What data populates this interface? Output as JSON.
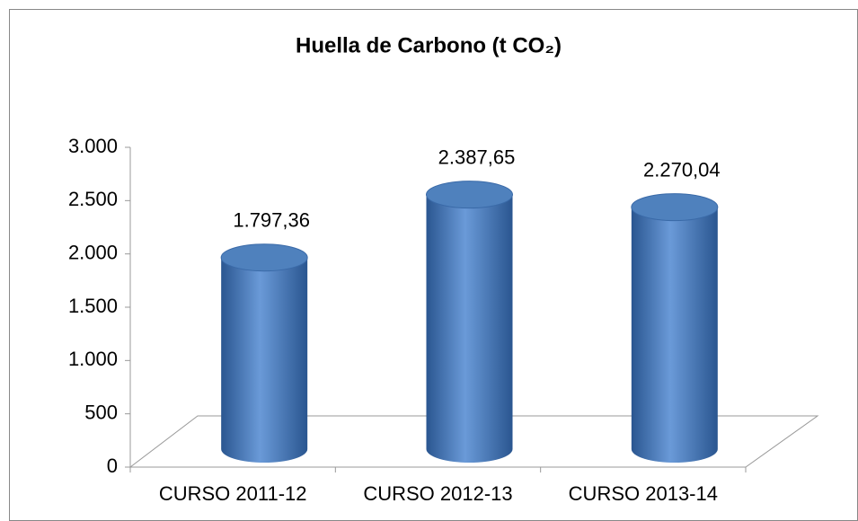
{
  "chart_data": {
    "type": "bar",
    "title": "Huella de Carbono (t CO₂)",
    "categories": [
      "CURSO 2011-12",
      "CURSO 2012-13",
      "CURSO 2013-14"
    ],
    "values": [
      1797.36,
      2387.65,
      2270.04
    ],
    "value_labels": [
      "1.797,36",
      "2.387,65",
      "2.270,04"
    ],
    "color": "#4f81bd",
    "ylim": [
      0,
      3000
    ],
    "yticks": [
      0,
      500,
      {
        "value": 1000,
        "label": "1.000"
      },
      {
        "value": 1500,
        "label": "1.500"
      },
      {
        "value": 2000,
        "label": "2.000"
      },
      {
        "value": 2500,
        "label": "2.500"
      },
      {
        "value": 3000,
        "label": "3.000"
      }
    ],
    "grid": false
  }
}
